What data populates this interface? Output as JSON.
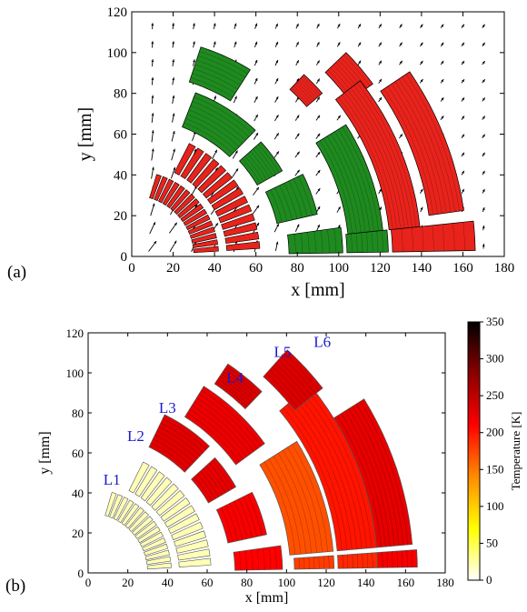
{
  "chart_data": [
    {
      "panel_label": "(a)",
      "type": "vector-field",
      "xlabel": "x [mm]",
      "ylabel": "y [mm]",
      "xlim": [
        0,
        180
      ],
      "ylim": [
        0,
        120
      ],
      "x_ticks": [
        0,
        20,
        40,
        60,
        80,
        100,
        120,
        140,
        160,
        180
      ],
      "y_ticks": [
        0,
        20,
        40,
        60,
        80,
        100,
        120
      ],
      "colors": {
        "red": "#e8231c",
        "green": "#1f8a1f"
      },
      "blocks": [
        {
          "layer": "L1",
          "color": "red",
          "r_in": 30,
          "r_out": 42,
          "theta": [
            3,
            74
          ],
          "count": 16
        },
        {
          "layer": "L2",
          "color": "red",
          "r_in": 46,
          "r_out": 62,
          "theta": [
            3,
            64
          ],
          "count": 14
        },
        {
          "layer": "L3",
          "color": "green",
          "r_in": 68,
          "r_out": 86,
          "theta": [
            46,
            69
          ],
          "count": 1
        },
        {
          "layer": "L4",
          "color": "green",
          "r_in": 90,
          "r_out": 108,
          "theta": [
            58,
            72
          ],
          "count": 1
        },
        {
          "layer": "L5",
          "color": "red",
          "r_in": 112,
          "r_out": 122,
          "theta": [
            41,
            47
          ],
          "count": 1
        },
        {
          "layer": "L6",
          "color": "red",
          "r_in": 130,
          "r_out": 144,
          "theta": [
            36,
            44
          ],
          "count": 1
        },
        {
          "layer": "L3",
          "color": "green",
          "r_in": 70,
          "r_out": 84,
          "theta": [
            30,
            42
          ],
          "count": 1
        },
        {
          "layer": "L3",
          "color": "green",
          "r_in": 72,
          "r_out": 92,
          "theta": [
            13,
            26
          ],
          "count": 1
        },
        {
          "layer": "L3",
          "color": "green",
          "r_in": 76,
          "r_out": 102,
          "theta": [
            1,
            8
          ],
          "count": 1
        },
        {
          "layer": "L4",
          "color": "green",
          "r_in": 105,
          "r_out": 122,
          "theta": [
            6,
            32
          ],
          "count": 1
        },
        {
          "layer": "L5",
          "color": "red",
          "r_in": 125,
          "r_out": 140,
          "theta": [
            6,
            38
          ],
          "count": 1
        },
        {
          "layer": "L6",
          "color": "red",
          "r_in": 145,
          "r_out": 162,
          "theta": [
            8,
            34
          ],
          "count": 1
        },
        {
          "layer": "L4",
          "color": "green",
          "r_in": 104,
          "r_out": 124,
          "theta": [
            1,
            6
          ],
          "count": 1
        },
        {
          "layer": "L5",
          "color": "red",
          "r_in": 126,
          "r_out": 166,
          "theta": [
            1,
            6
          ],
          "count": 1
        }
      ]
    },
    {
      "panel_label": "(b)",
      "type": "heatmap",
      "xlabel": "x [mm]",
      "ylabel": "y [mm]",
      "xlim": [
        0,
        180
      ],
      "ylim": [
        0,
        120
      ],
      "x_ticks": [
        0,
        20,
        40,
        60,
        80,
        100,
        120,
        140,
        160,
        180
      ],
      "y_ticks": [
        0,
        20,
        40,
        60,
        80,
        100,
        120
      ],
      "layer_labels": [
        {
          "text": "L1",
          "x": 12,
          "y": 44
        },
        {
          "text": "L2",
          "x": 24,
          "y": 66
        },
        {
          "text": "L3",
          "x": 40,
          "y": 80
        },
        {
          "text": "L4",
          "x": 74,
          "y": 95
        },
        {
          "text": "L5",
          "x": 98,
          "y": 108
        },
        {
          "text": "L6",
          "x": 118,
          "y": 113
        }
      ],
      "colorbar": {
        "label": "Temperature [K]",
        "range": [
          0,
          350
        ],
        "ticks": [
          0,
          50,
          100,
          150,
          200,
          250,
          300,
          350
        ],
        "colormap": [
          "#ffffff",
          "#ffff00",
          "#ff8c00",
          "#ff0000",
          "#8b0000",
          "#000000"
        ]
      },
      "blocks": [
        {
          "layer": "L1",
          "r_in": 30,
          "r_out": 42,
          "theta": [
            3,
            74
          ],
          "count": 16,
          "temperature": 20
        },
        {
          "layer": "L2",
          "r_in": 46,
          "r_out": 62,
          "theta": [
            3,
            64
          ],
          "count": 14,
          "temperature": 20
        },
        {
          "layer": "L3",
          "r_in": 70,
          "r_out": 88,
          "theta": [
            46,
            64
          ],
          "count": 1,
          "temperature": 228
        },
        {
          "layer": "L3",
          "r_in": 70,
          "r_out": 86,
          "theta": [
            30,
            42
          ],
          "count": 1,
          "temperature": 225
        },
        {
          "layer": "L3",
          "r_in": 72,
          "r_out": 92,
          "theta": [
            12,
            26
          ],
          "count": 1,
          "temperature": 215
        },
        {
          "layer": "L3",
          "r_in": 74,
          "r_out": 98,
          "theta": [
            1,
            8
          ],
          "count": 1,
          "temperature": 210
        },
        {
          "layer": "L4",
          "r_in": 92,
          "r_out": 110,
          "theta": [
            36,
            58
          ],
          "count": 1,
          "temperature": 222
        },
        {
          "layer": "L4",
          "r_in": 102,
          "r_out": 124,
          "theta": [
            5,
            32
          ],
          "count": 1,
          "temperature": 170
        },
        {
          "layer": "L4",
          "r_in": 104,
          "r_out": 124,
          "theta": [
            1,
            4
          ],
          "count": 1,
          "temperature": 180
        },
        {
          "layer": "L5",
          "r_in": 114,
          "r_out": 126,
          "theta": [
            46,
            56
          ],
          "count": 1,
          "temperature": 232
        },
        {
          "layer": "L5",
          "r_in": 126,
          "r_out": 146,
          "theta": [
            5,
            40
          ],
          "count": 1,
          "temperature": 200
        },
        {
          "layer": "L5",
          "r_in": 126,
          "r_out": 146,
          "theta": [
            1,
            4
          ],
          "count": 1,
          "temperature": 190
        },
        {
          "layer": "L6",
          "r_in": 132,
          "r_out": 150,
          "theta": [
            38,
            48
          ],
          "count": 1,
          "temperature": 232
        },
        {
          "layer": "L6",
          "r_in": 146,
          "r_out": 164,
          "theta": [
            5,
            32
          ],
          "count": 1,
          "temperature": 225
        },
        {
          "layer": "L6",
          "r_in": 146,
          "r_out": 166,
          "theta": [
            1,
            4
          ],
          "count": 1,
          "temperature": 215
        }
      ]
    }
  ]
}
